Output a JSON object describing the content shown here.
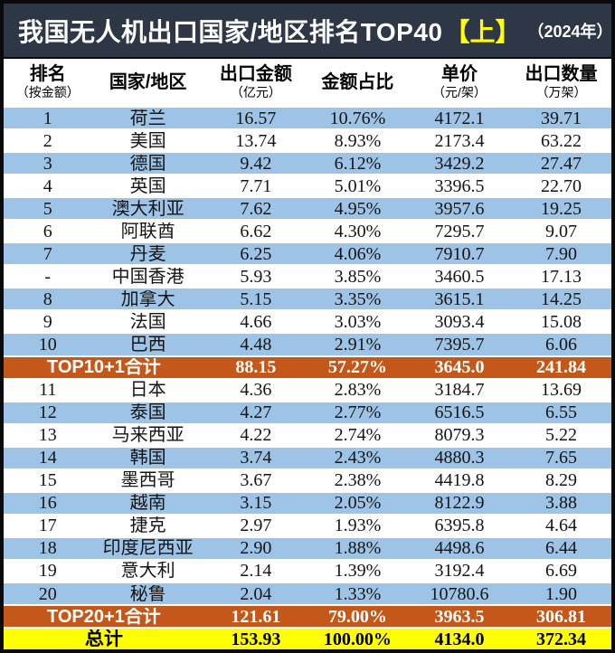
{
  "title": {
    "main": "我国无人机出口国家/地区排名TOP40",
    "part": "【上】",
    "year": "（2024年）"
  },
  "colors": {
    "title_bar_bg": "#2e3745",
    "title_highlight": "#ffff00",
    "row_blue": "#9dc3e6",
    "summary_orange": "#c4581a",
    "total_yellow": "#ffff00",
    "frame_border": "#0a0a0a"
  },
  "chart_data": {
    "type": "table",
    "title": "我国无人机出口国家/地区排名TOP40【上】（2024年）",
    "columns": [
      {
        "label": "排名",
        "sub": "（按金额）"
      },
      {
        "label": "国家/地区",
        "sub": ""
      },
      {
        "label": "出口金额",
        "sub": "（亿元）"
      },
      {
        "label": "金额占比",
        "sub": ""
      },
      {
        "label": "单价",
        "sub": "（元/架）"
      },
      {
        "label": "出口数量",
        "sub": "（万架）"
      }
    ],
    "rows": [
      {
        "variant": "blue",
        "rank": "1",
        "country": "荷兰",
        "amount": "16.57",
        "share": "10.76%",
        "price": "4172.1",
        "qty": "39.71"
      },
      {
        "variant": "white",
        "rank": "2",
        "country": "美国",
        "amount": "13.74",
        "share": "8.93%",
        "price": "2173.4",
        "qty": "63.22"
      },
      {
        "variant": "blue",
        "rank": "3",
        "country": "德国",
        "amount": "9.42",
        "share": "6.12%",
        "price": "3429.2",
        "qty": "27.47"
      },
      {
        "variant": "white",
        "rank": "4",
        "country": "英国",
        "amount": "7.71",
        "share": "5.01%",
        "price": "3396.5",
        "qty": "22.70"
      },
      {
        "variant": "blue",
        "rank": "5",
        "country": "澳大利亚",
        "amount": "7.62",
        "share": "4.95%",
        "price": "3957.6",
        "qty": "19.25"
      },
      {
        "variant": "white",
        "rank": "6",
        "country": "阿联酋",
        "amount": "6.62",
        "share": "4.30%",
        "price": "7295.7",
        "qty": "9.07"
      },
      {
        "variant": "blue",
        "rank": "7",
        "country": "丹麦",
        "amount": "6.25",
        "share": "4.06%",
        "price": "7910.7",
        "qty": "7.90"
      },
      {
        "variant": "white",
        "rank": "-",
        "country": "中国香港",
        "amount": "5.93",
        "share": "3.85%",
        "price": "3460.5",
        "qty": "17.13"
      },
      {
        "variant": "blue",
        "rank": "8",
        "country": "加拿大",
        "amount": "5.15",
        "share": "3.35%",
        "price": "3615.1",
        "qty": "14.25"
      },
      {
        "variant": "white",
        "rank": "9",
        "country": "法国",
        "amount": "4.66",
        "share": "3.03%",
        "price": "3093.4",
        "qty": "15.08"
      },
      {
        "variant": "blue",
        "rank": "10",
        "country": "巴西",
        "amount": "4.48",
        "share": "2.91%",
        "price": "7395.7",
        "qty": "6.06"
      },
      {
        "variant": "orange",
        "label": "TOP10+1合计",
        "amount": "88.15",
        "share": "57.27%",
        "price": "3645.0",
        "qty": "241.84"
      },
      {
        "variant": "white",
        "rank": "11",
        "country": "日本",
        "amount": "4.36",
        "share": "2.83%",
        "price": "3184.7",
        "qty": "13.69"
      },
      {
        "variant": "blue",
        "rank": "12",
        "country": "泰国",
        "amount": "4.27",
        "share": "2.77%",
        "price": "6516.5",
        "qty": "6.55"
      },
      {
        "variant": "white",
        "rank": "13",
        "country": "马来西亚",
        "amount": "4.22",
        "share": "2.74%",
        "price": "8079.3",
        "qty": "5.22"
      },
      {
        "variant": "blue",
        "rank": "14",
        "country": "韩国",
        "amount": "3.74",
        "share": "2.43%",
        "price": "4880.3",
        "qty": "7.65"
      },
      {
        "variant": "white",
        "rank": "15",
        "country": "墨西哥",
        "amount": "3.67",
        "share": "2.38%",
        "price": "4419.8",
        "qty": "8.29"
      },
      {
        "variant": "blue",
        "rank": "16",
        "country": "越南",
        "amount": "3.15",
        "share": "2.05%",
        "price": "8122.9",
        "qty": "3.88"
      },
      {
        "variant": "white",
        "rank": "17",
        "country": "捷克",
        "amount": "2.97",
        "share": "1.93%",
        "price": "6395.8",
        "qty": "4.64"
      },
      {
        "variant": "blue",
        "rank": "18",
        "country": "印度尼西亚",
        "amount": "2.90",
        "share": "1.88%",
        "price": "4498.6",
        "qty": "6.44"
      },
      {
        "variant": "white",
        "rank": "19",
        "country": "意大利",
        "amount": "2.14",
        "share": "1.39%",
        "price": "3192.4",
        "qty": "6.69"
      },
      {
        "variant": "blue",
        "rank": "20",
        "country": "秘鲁",
        "amount": "2.04",
        "share": "1.33%",
        "price": "10780.6",
        "qty": "1.90"
      },
      {
        "variant": "orange",
        "label": "TOP20+1合计",
        "amount": "121.61",
        "share": "79.00%",
        "price": "3963.5",
        "qty": "306.81"
      },
      {
        "variant": "yellow",
        "label": "总计",
        "amount": "153.93",
        "share": "100.00%",
        "price": "4134.0",
        "qty": "372.34"
      }
    ]
  }
}
